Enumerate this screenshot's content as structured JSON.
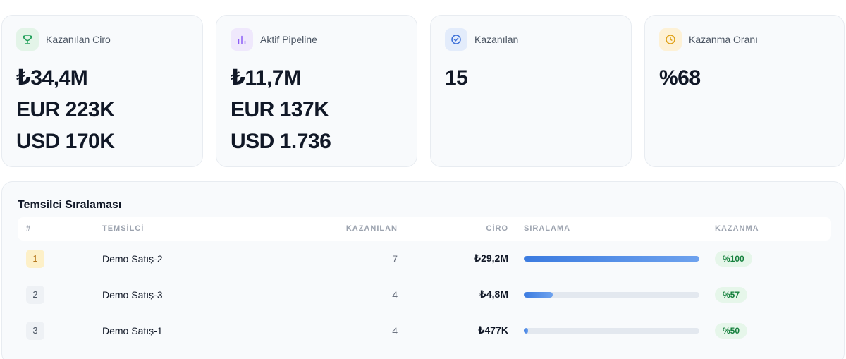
{
  "kpis": [
    {
      "label": "Kazanılan Ciro",
      "icon": "trophy-icon",
      "icon_bg": "#e3f4e8",
      "icon_color": "#22a05a",
      "values": [
        "₺34,4M",
        "EUR 223K",
        "USD 170K"
      ]
    },
    {
      "label": "Aktif Pipeline",
      "icon": "bar-chart-icon",
      "icon_bg": "#efe8fc",
      "icon_color": "#8b5cf6",
      "values": [
        "₺11,7M",
        "EUR 137K",
        "USD 1.736"
      ]
    },
    {
      "label": "Kazanılan",
      "icon": "check-circle-icon",
      "icon_bg": "#e3ecfb",
      "icon_color": "#3b6fd8",
      "values": [
        "15"
      ]
    },
    {
      "label": "Kazanma Oranı",
      "icon": "clock-icon",
      "icon_bg": "#fdf1d6",
      "icon_color": "#e0a21a",
      "values": [
        "%68"
      ]
    }
  ],
  "ranking": {
    "title": "Temsilci Sıralaması",
    "columns": {
      "rank": "#",
      "rep": "TEMSİLCİ",
      "won": "KAZANILAN",
      "revenue": "CİRO",
      "ranking": "SIRALAMA",
      "win": "KAZANMA"
    },
    "rows": [
      {
        "rank": "1",
        "rep": "Demo Satış-2",
        "won": "7",
        "revenue": "₺29,2M",
        "share": 1.0,
        "win": "%100"
      },
      {
        "rank": "2",
        "rep": "Demo Satış-3",
        "won": "4",
        "revenue": "₺4,8M",
        "share": 0.164,
        "win": "%57"
      },
      {
        "rank": "3",
        "rep": "Demo Satış-1",
        "won": "4",
        "revenue": "₺477K",
        "share": 0.02,
        "win": "%50"
      }
    ]
  }
}
